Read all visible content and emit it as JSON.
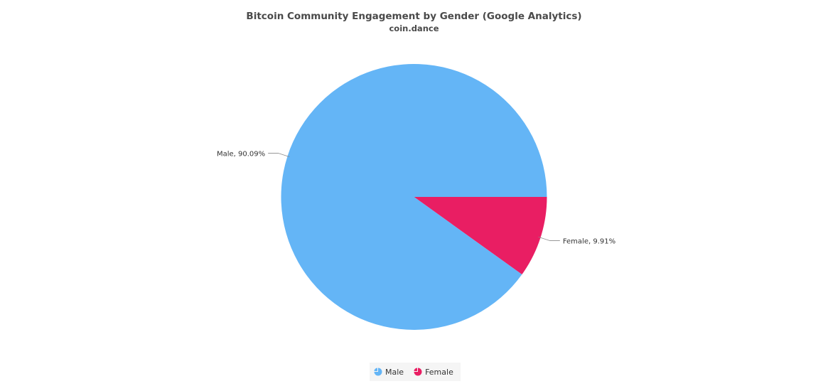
{
  "chart_data": {
    "type": "pie",
    "title": "Bitcoin Community Engagement by Gender (Google Analytics)",
    "subtitle": "coin.dance",
    "slices": [
      {
        "name": "Male",
        "value": 90.09,
        "label": "Male, 90.09%",
        "color": "#64b5f6"
      },
      {
        "name": "Female",
        "value": 9.91,
        "label": "Female, 9.91%",
        "color": "#e91e63"
      }
    ],
    "legend_position": "bottom-center"
  },
  "legend": {
    "items": [
      {
        "label": "Male",
        "color": "#64b5f6",
        "icon": "pie-icon"
      },
      {
        "label": "Female",
        "color": "#e91e63",
        "icon": "pie-icon"
      }
    ]
  }
}
